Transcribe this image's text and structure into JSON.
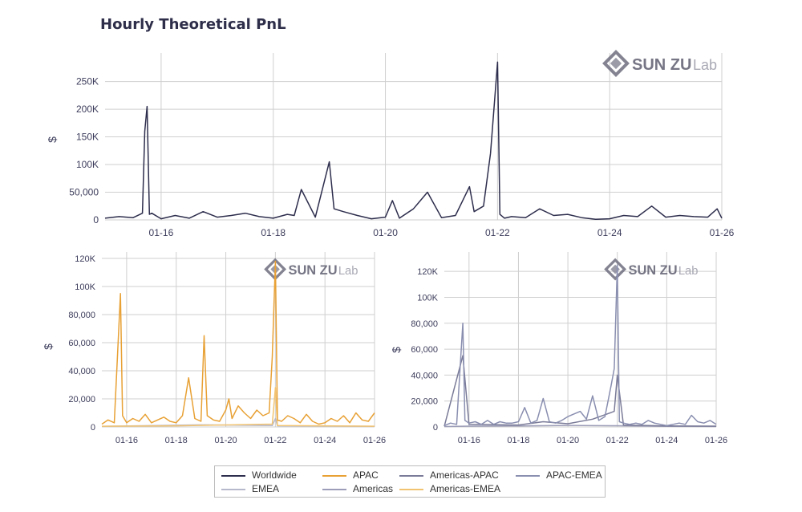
{
  "title": "Hourly Theoretical PnL",
  "watermark": {
    "brand": "SUN ZU",
    "suffix": "Lab"
  },
  "colors": {
    "Worldwide": "#2d2d4d",
    "APAC": "#e8a135",
    "Americas-APAC": "#7a7b98",
    "APAC-EMEA": "#8a8fb0",
    "EMEA": "#b6b8cc",
    "Americas": "#9c9db8",
    "Americas-EMEA": "#f2c472",
    "grid": "#cfcfcf",
    "axis_text": "#3c3c5c"
  },
  "legend": [
    {
      "name": "Worldwide"
    },
    {
      "name": "APAC"
    },
    {
      "name": "Americas-APAC"
    },
    {
      "name": "APAC-EMEA"
    },
    {
      "name": "EMEA"
    },
    {
      "name": "Americas"
    },
    {
      "name": "Americas-EMEA"
    }
  ],
  "chart_data": [
    {
      "type": "line",
      "id": "top",
      "ylabel": "$",
      "xlim": [
        "2022-01-15",
        "2022-01-26"
      ],
      "xticks": [
        "01-16",
        "01-18",
        "01-20",
        "01-22",
        "01-24",
        "01-26"
      ],
      "ylim": [
        0,
        290000
      ],
      "yticks": [
        0,
        50000,
        100000,
        150000,
        200000,
        250000
      ],
      "ytick_labels": [
        "0",
        "50,000",
        "100K",
        "150K",
        "200K",
        "250K"
      ],
      "grid": true,
      "series": [
        {
          "name": "Worldwide",
          "x": [
            "2022-01-15",
            "2022-01-15T06:00",
            "2022-01-15T12:00",
            "2022-01-15T16:00",
            "2022-01-15T17:00",
            "2022-01-15T18:00",
            "2022-01-15T19:00",
            "2022-01-15T20:00",
            "2022-01-16",
            "2022-01-16T06:00",
            "2022-01-16T12:00",
            "2022-01-16T18:00",
            "2022-01-17",
            "2022-01-17T06:00",
            "2022-01-17T12:00",
            "2022-01-17T18:00",
            "2022-01-18",
            "2022-01-18T06:00",
            "2022-01-18T09:00",
            "2022-01-18T12:00",
            "2022-01-18T18:00",
            "2022-01-19",
            "2022-01-19T02:00",
            "2022-01-19T06:00",
            "2022-01-19T12:00",
            "2022-01-19T18:00",
            "2022-01-20",
            "2022-01-20T03:00",
            "2022-01-20T06:00",
            "2022-01-20T12:00",
            "2022-01-20T18:00",
            "2022-01-21",
            "2022-01-21T06:00",
            "2022-01-21T12:00",
            "2022-01-21T14:00",
            "2022-01-21T18:00",
            "2022-01-21T21:00",
            "2022-01-22",
            "2022-01-22T01:00",
            "2022-01-22T03:00",
            "2022-01-22T06:00",
            "2022-01-22T12:00",
            "2022-01-22T18:00",
            "2022-01-23",
            "2022-01-23T06:00",
            "2022-01-23T12:00",
            "2022-01-23T18:00",
            "2022-01-24",
            "2022-01-24T06:00",
            "2022-01-24T12:00",
            "2022-01-24T18:00",
            "2022-01-25",
            "2022-01-25T06:00",
            "2022-01-25T12:00",
            "2022-01-25T18:00",
            "2022-01-25T22:00",
            "2022-01-26"
          ],
          "values": [
            3000,
            6000,
            4000,
            12000,
            160000,
            205000,
            10000,
            12000,
            2000,
            8000,
            3000,
            15000,
            5000,
            8000,
            12000,
            6000,
            3000,
            10000,
            8000,
            55000,
            5000,
            105000,
            20000,
            15000,
            8000,
            2000,
            5000,
            35000,
            3000,
            20000,
            50000,
            4000,
            8000,
            60000,
            15000,
            25000,
            120000,
            285000,
            10000,
            3000,
            6000,
            4000,
            20000,
            8000,
            10000,
            4000,
            1000,
            2000,
            8000,
            6000,
            25000,
            5000,
            8000,
            6000,
            5000,
            20000,
            3000
          ]
        }
      ]
    },
    {
      "type": "line",
      "id": "bottom-left",
      "ylabel": "$",
      "xlim": [
        "2022-01-15",
        "2022-01-26"
      ],
      "xticks": [
        "01-16",
        "01-18",
        "01-20",
        "01-22",
        "01-24",
        "01-26"
      ],
      "ylim": [
        0,
        120000
      ],
      "yticks": [
        0,
        20000,
        40000,
        60000,
        80000,
        100000,
        120000
      ],
      "ytick_labels": [
        "0",
        "20,000",
        "40,000",
        "60,000",
        "80,000",
        "100K",
        "120K"
      ],
      "grid": true,
      "series": [
        {
          "name": "APAC",
          "x": [
            "2022-01-15",
            "2022-01-15T06:00",
            "2022-01-15T12:00",
            "2022-01-15T18:00",
            "2022-01-15T20:00",
            "2022-01-16",
            "2022-01-16T06:00",
            "2022-01-16T12:00",
            "2022-01-16T18:00",
            "2022-01-17",
            "2022-01-17T06:00",
            "2022-01-17T12:00",
            "2022-01-17T18:00",
            "2022-01-18",
            "2022-01-18T06:00",
            "2022-01-18T12:00",
            "2022-01-18T18:00",
            "2022-01-19",
            "2022-01-19T03:00",
            "2022-01-19T06:00",
            "2022-01-19T12:00",
            "2022-01-19T18:00",
            "2022-01-20",
            "2022-01-20T03:00",
            "2022-01-20T06:00",
            "2022-01-20T12:00",
            "2022-01-20T18:00",
            "2022-01-21",
            "2022-01-21T06:00",
            "2022-01-21T12:00",
            "2022-01-21T18:00",
            "2022-01-21T21:00",
            "2022-01-22",
            "2022-01-22T02:00",
            "2022-01-22T06:00",
            "2022-01-22T12:00",
            "2022-01-22T18:00",
            "2022-01-23",
            "2022-01-23T06:00",
            "2022-01-23T12:00",
            "2022-01-23T18:00",
            "2022-01-24",
            "2022-01-24T06:00",
            "2022-01-24T12:00",
            "2022-01-24T18:00",
            "2022-01-25",
            "2022-01-25T06:00",
            "2022-01-25T12:00",
            "2022-01-25T18:00",
            "2022-01-26"
          ],
          "values": [
            2000,
            5000,
            3000,
            95000,
            8000,
            3000,
            6000,
            4000,
            9000,
            3000,
            5000,
            7000,
            4000,
            3000,
            8000,
            35000,
            6000,
            4000,
            65000,
            8000,
            5000,
            4000,
            12000,
            20000,
            6000,
            15000,
            10000,
            6000,
            12000,
            8000,
            10000,
            50000,
            118000,
            5000,
            4000,
            8000,
            6000,
            3000,
            9000,
            4000,
            2000,
            3000,
            6000,
            4000,
            8000,
            3000,
            10000,
            5000,
            4000,
            10000
          ]
        },
        {
          "name": "Americas-EMEA",
          "x": [
            "2022-01-15",
            "2022-01-18",
            "2022-01-21T21:00",
            "2022-01-22",
            "2022-01-22T02:00",
            "2022-01-26"
          ],
          "values": [
            500,
            800,
            2000,
            28000,
            1000,
            500
          ]
        },
        {
          "name": "EMEA",
          "x": [
            "2022-01-15",
            "2022-01-19",
            "2022-01-21T21:00",
            "2022-01-22",
            "2022-01-22T02:00",
            "2022-01-26"
          ],
          "values": [
            400,
            1500,
            1000,
            6000,
            800,
            400
          ]
        }
      ]
    },
    {
      "type": "line",
      "id": "bottom-right",
      "ylabel": "$",
      "xlim": [
        "2022-01-15",
        "2022-01-26"
      ],
      "xticks": [
        "01-16",
        "01-18",
        "01-20",
        "01-22",
        "01-24",
        "01-26"
      ],
      "ylim": [
        0,
        130000
      ],
      "yticks": [
        0,
        20000,
        40000,
        60000,
        80000,
        100000,
        120000
      ],
      "ytick_labels": [
        "0",
        "20,000",
        "40,000",
        "60,000",
        "80,000",
        "100K",
        "120K"
      ],
      "grid": true,
      "series": [
        {
          "name": "APAC-EMEA",
          "x": [
            "2022-01-15",
            "2022-01-15T06:00",
            "2022-01-15T12:00",
            "2022-01-15T18:00",
            "2022-01-15T20:00",
            "2022-01-16",
            "2022-01-16T06:00",
            "2022-01-16T12:00",
            "2022-01-16T18:00",
            "2022-01-17",
            "2022-01-17T06:00",
            "2022-01-17T12:00",
            "2022-01-17T18:00",
            "2022-01-18",
            "2022-01-18T06:00",
            "2022-01-18T12:00",
            "2022-01-18T18:00",
            "2022-01-19",
            "2022-01-19T06:00",
            "2022-01-19T12:00",
            "2022-01-19T18:00",
            "2022-01-20",
            "2022-01-20T06:00",
            "2022-01-20T12:00",
            "2022-01-20T18:00",
            "2022-01-21",
            "2022-01-21T06:00",
            "2022-01-21T12:00",
            "2022-01-21T18:00",
            "2022-01-21T21:00",
            "2022-01-22",
            "2022-01-22T02:00",
            "2022-01-22T06:00",
            "2022-01-22T12:00",
            "2022-01-22T18:00",
            "2022-01-23",
            "2022-01-23T06:00",
            "2022-01-23T12:00",
            "2022-01-23T18:00",
            "2022-01-24",
            "2022-01-24T06:00",
            "2022-01-24T12:00",
            "2022-01-24T18:00",
            "2022-01-25",
            "2022-01-25T06:00",
            "2022-01-25T12:00",
            "2022-01-25T18:00",
            "2022-01-26"
          ],
          "values": [
            1000,
            3000,
            2000,
            80000,
            5000,
            3000,
            4000,
            2000,
            5000,
            2000,
            4000,
            3000,
            3000,
            4000,
            15000,
            3000,
            5000,
            22000,
            4000,
            3000,
            5000,
            8000,
            10000,
            12000,
            6000,
            24000,
            5000,
            8000,
            32000,
            45000,
            125000,
            4000,
            3000,
            2000,
            3000,
            2000,
            5000,
            3000,
            2000,
            1000,
            2000,
            3000,
            2000,
            9000,
            4000,
            3000,
            5000,
            2000
          ]
        },
        {
          "name": "Americas-APAC",
          "x": [
            "2022-01-15",
            "2022-01-15T18:00",
            "2022-01-16",
            "2022-01-18",
            "2022-01-19",
            "2022-01-20",
            "2022-01-21",
            "2022-01-21T21:00",
            "2022-01-22",
            "2022-01-22T06:00",
            "2022-01-24",
            "2022-01-26"
          ],
          "values": [
            500,
            55000,
            2000,
            1500,
            4000,
            2500,
            6000,
            12000,
            40000,
            1500,
            800,
            600
          ]
        },
        {
          "name": "Americas",
          "x": [
            "2022-01-15",
            "2022-01-16",
            "2022-01-18",
            "2022-01-20",
            "2022-01-22",
            "2022-01-24",
            "2022-01-26"
          ],
          "values": [
            300,
            600,
            800,
            1200,
            900,
            500,
            400
          ]
        }
      ]
    }
  ]
}
